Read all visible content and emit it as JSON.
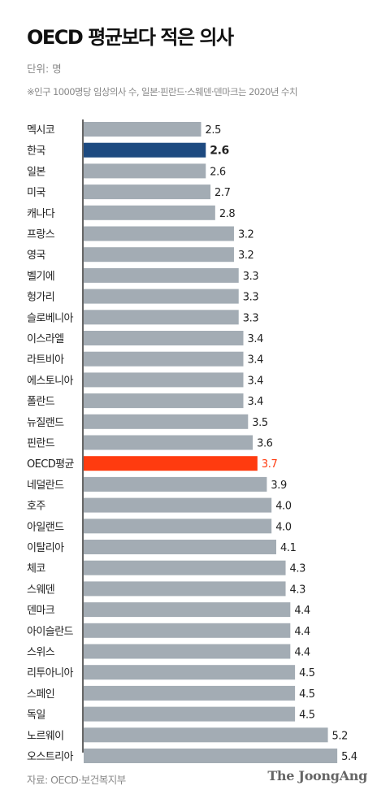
{
  "title": "OECD 평균보다 적은 의사",
  "unit": "단위: 명",
  "note": "※인구 1000명당 임상의사 수, 일본·핀란드·스웨덴·덴마크는 2020년 수치",
  "source": "자료: OECD·보건복지부",
  "brand": "The JoongAng",
  "colors": {
    "bar_default": "#a3acb4",
    "bar_korea": "#1d4a80",
    "bar_oecd": "#ff3b0f",
    "label_oecd": "#ff3b0f",
    "axis": "#333333"
  },
  "chart_data": {
    "type": "bar",
    "orientation": "horizontal",
    "categories": [
      "멕시코",
      "한국",
      "일본",
      "미국",
      "캐나다",
      "프랑스",
      "영국",
      "벨기에",
      "헝가리",
      "슬로베니아",
      "이스라엘",
      "라트비아",
      "에스토니아",
      "폴란드",
      "뉴질랜드",
      "핀란드",
      "OECD평균",
      "네덜란드",
      "호주",
      "아일랜드",
      "이탈리아",
      "체코",
      "스웨덴",
      "덴마크",
      "아이슬란드",
      "스위스",
      "리투아니아",
      "스페인",
      "독일",
      "노르웨이",
      "오스트리아"
    ],
    "values": [
      2.5,
      2.6,
      2.6,
      2.7,
      2.8,
      3.2,
      3.2,
      3.3,
      3.3,
      3.3,
      3.4,
      3.4,
      3.4,
      3.4,
      3.5,
      3.6,
      3.7,
      3.9,
      4.0,
      4.0,
      4.1,
      4.3,
      4.3,
      4.4,
      4.4,
      4.4,
      4.5,
      4.5,
      4.5,
      5.2,
      5.4
    ],
    "value_labels": [
      "2.5",
      "2.6",
      "2.6",
      "2.7",
      "2.8",
      "3.2",
      "3.2",
      "3.3",
      "3.3",
      "3.3",
      "3.4",
      "3.4",
      "3.4",
      "3.4",
      "3.5",
      "3.6",
      "3.7",
      "3.9",
      "4.0",
      "4.0",
      "4.1",
      "4.3",
      "4.3",
      "4.4",
      "4.4",
      "4.4",
      "4.5",
      "4.5",
      "4.5",
      "5.2",
      "5.4"
    ],
    "highlight": {
      "한국": "bar_korea",
      "OECD평균": "bar_oecd"
    },
    "title": "OECD 평균보다 적은 의사",
    "xlabel": "",
    "ylabel": "",
    "grid": false,
    "legend": "none"
  }
}
